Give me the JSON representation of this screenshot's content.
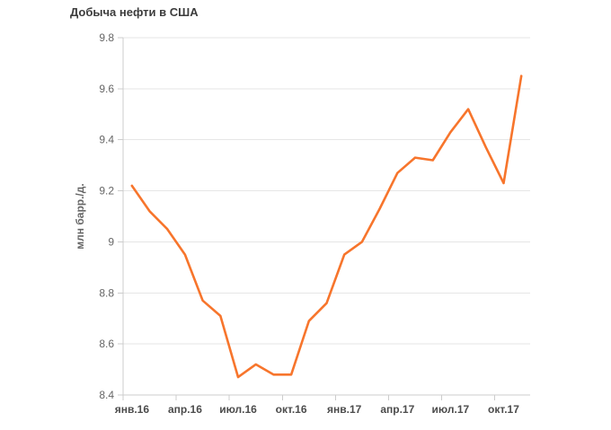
{
  "chart_data": {
    "type": "line",
    "title": "Добыча нефти в США",
    "ylabel": "млн барр./д.",
    "xlabel": "",
    "ylim": [
      8.4,
      9.8
    ],
    "y_tick_step": 0.2,
    "y_tick_labels": [
      "8.4",
      "8.6",
      "8.8",
      "9",
      "9.2",
      "9.4",
      "9.6",
      "9.8"
    ],
    "x_tick_labels": [
      "янв.16",
      "апр.16",
      "июл.16",
      "окт.16",
      "янв.17",
      "апр.17",
      "июл.17",
      "окт.17"
    ],
    "grid": "horizontal-only",
    "legend": "none",
    "x": [
      "янв.16",
      "фев.16",
      "мар.16",
      "апр.16",
      "май.16",
      "июн.16",
      "июл.16",
      "авг.16",
      "сен.16",
      "окт.16",
      "ноя.16",
      "дек.16",
      "янв.17",
      "фев.17",
      "мар.17",
      "апр.17",
      "май.17",
      "июн.17",
      "июл.17",
      "авг.17",
      "сен.17",
      "окт.17",
      "ноя.17"
    ],
    "series": [
      {
        "name": "Добыча нефти в США",
        "values": [
          9.22,
          9.12,
          9.05,
          8.95,
          8.77,
          8.71,
          8.47,
          8.52,
          8.48,
          8.48,
          8.69,
          8.76,
          8.95,
          9.0,
          9.13,
          9.27,
          9.33,
          9.32,
          9.43,
          9.52,
          9.37,
          9.23,
          9.65
        ]
      }
    ],
    "colors": {
      "line": "#f7752c",
      "grid": "#e6e6e6",
      "axis": "#cccccc",
      "title_text": "#3c3c3c",
      "y_label_text": "#666666",
      "x_label_text": "#4c4c4c"
    }
  }
}
